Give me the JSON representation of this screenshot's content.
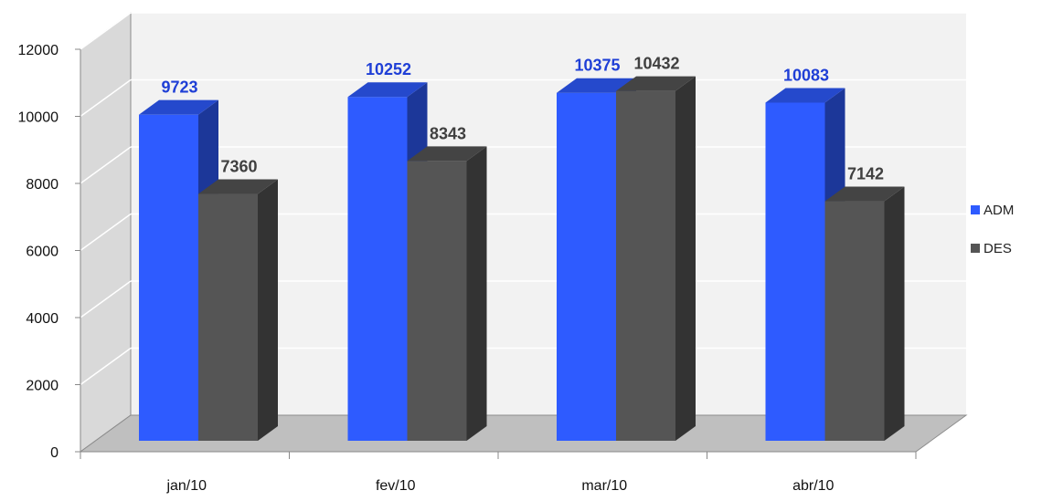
{
  "chart_data": {
    "type": "bar",
    "categories": [
      "jan/10",
      "fev/10",
      "mar/10",
      "abr/10"
    ],
    "series": [
      {
        "name": "ADM",
        "values": [
          9723,
          10252,
          10375,
          10083
        ],
        "color": "#2E5BFF",
        "label_color": "#1F3FD6"
      },
      {
        "name": "DES",
        "values": [
          7360,
          8343,
          10432,
          7142
        ],
        "color": "#555555",
        "label_color": "#404040"
      }
    ],
    "ylim": [
      0,
      12000
    ],
    "yticks": [
      "0",
      "2000",
      "4000",
      "6000",
      "8000",
      "10000",
      "12000"
    ],
    "grid": true,
    "three_d": true,
    "legend_position": "right"
  }
}
